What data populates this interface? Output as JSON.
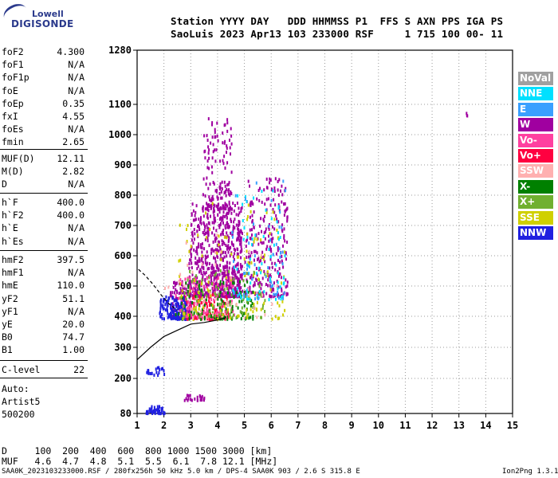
{
  "logo": {
    "line1": "Lowell",
    "line2": "DIGISONDE"
  },
  "header": {
    "line1": "Station YYYY DAY   DDD HHMMSS P1  FFS S AXN PPS IGA PS",
    "line2": "SaoLuis 2023 Apr13 103 233000 RSF     1 715 100 00- 11"
  },
  "params_group1": [
    {
      "name": "foF2",
      "value": "4.300"
    },
    {
      "name": "foF1",
      "value": "N/A"
    },
    {
      "name": "foF1p",
      "value": "N/A"
    },
    {
      "name": "foE",
      "value": "N/A"
    },
    {
      "name": "foEp",
      "value": "0.35"
    },
    {
      "name": "fxI",
      "value": "4.55"
    },
    {
      "name": "foEs",
      "value": "N/A"
    },
    {
      "name": "fmin",
      "value": "2.65"
    }
  ],
  "params_group2": [
    {
      "name": "MUF(D)",
      "value": "12.11"
    },
    {
      "name": "M(D)",
      "value": "2.82"
    },
    {
      "name": "D",
      "value": "N/A"
    }
  ],
  "params_group3": [
    {
      "name": "h`F",
      "value": "400.0"
    },
    {
      "name": "h`F2",
      "value": "400.0"
    },
    {
      "name": "h`E",
      "value": "N/A"
    },
    {
      "name": "h`Es",
      "value": "N/A"
    }
  ],
  "params_group4": [
    {
      "name": "hmF2",
      "value": "397.5"
    },
    {
      "name": "hmF1",
      "value": "N/A"
    },
    {
      "name": "hmE",
      "value": "110.0"
    },
    {
      "name": "yF2",
      "value": "51.1"
    },
    {
      "name": "yF1",
      "value": "N/A"
    },
    {
      "name": "yE",
      "value": "20.0"
    },
    {
      "name": "B0",
      "value": "74.7"
    },
    {
      "name": "B1",
      "value": "1.00"
    }
  ],
  "c_level": {
    "name": "C-level",
    "value": "22"
  },
  "auto": {
    "line1": "Auto:",
    "line2": "Artist5",
    "line3": "500200"
  },
  "legend": [
    {
      "label": "NoVal",
      "color": "#a0a0a0"
    },
    {
      "label": "NNE",
      "color": "#00e0ff"
    },
    {
      "label": "E",
      "color": "#3aa0ff"
    },
    {
      "label": "W",
      "color": "#a000a0"
    },
    {
      "label": "Vo-",
      "color": "#ff40a0"
    },
    {
      "label": "Vo+",
      "color": "#ff0040"
    },
    {
      "label": "SSW",
      "color": "#ffb0b0"
    },
    {
      "label": "X-",
      "color": "#008000"
    },
    {
      "label": "X+",
      "color": "#70b030"
    },
    {
      "label": "SSE",
      "color": "#d0d000"
    },
    {
      "label": "NNW",
      "color": "#2020e0"
    }
  ],
  "bottom_table": {
    "d_row": "D     100  200  400  600  800 1000 1500 3000 [km]",
    "muf_row": "MUF   4.6  4.7  4.8  5.1  5.5  6.1  7.8 12.1 [MHz]"
  },
  "footer": {
    "left": "SAA0K_2023103233000.RSF / 280fx256h 50 kHz 5.0 km / DPS-4 SAA0K 903 / 2.6 S 315.8 E",
    "right": "Ion2Png 1.3.17"
  },
  "chart_data": {
    "type": "scatter",
    "xlim": [
      1,
      15
    ],
    "ylim": [
      80,
      1280
    ],
    "x_ticks": [
      1,
      2,
      3,
      4,
      5,
      6,
      7,
      8,
      9,
      10,
      11,
      12,
      13,
      14,
      15
    ],
    "y_ticks": [
      80,
      200,
      300,
      400,
      500,
      600,
      700,
      800,
      900,
      1000,
      1100,
      1280
    ],
    "grid": true,
    "clusters": [
      {
        "name": "W",
        "color": "#a000a0",
        "x": [
          2.9,
          4.9
        ],
        "y": [
          470,
          780
        ],
        "count": 700
      },
      {
        "name": "W",
        "color": "#a000a0",
        "x": [
          3.4,
          4.5
        ],
        "y": [
          760,
          1060
        ],
        "count": 140
      },
      {
        "name": "W",
        "color": "#a000a0",
        "x": [
          5.0,
          6.6
        ],
        "y": [
          470,
          860
        ],
        "count": 260
      },
      {
        "name": "W",
        "color": "#a000a0",
        "x": [
          2.2,
          3.0
        ],
        "y": [
          400,
          520
        ],
        "count": 120
      },
      {
        "name": "NNW",
        "color": "#2020e0",
        "x": [
          1.8,
          2.8
        ],
        "y": [
          395,
          470
        ],
        "count": 160
      },
      {
        "name": "NNW",
        "color": "#2020e0",
        "x": [
          1.3,
          2.0
        ],
        "y": [
          85,
          110
        ],
        "count": 50
      },
      {
        "name": "NNW",
        "color": "#2020e0",
        "x": [
          1.3,
          2.0
        ],
        "y": [
          215,
          240
        ],
        "count": 20
      },
      {
        "name": "Vo+",
        "color": "#ff0040",
        "x": [
          2.7,
          4.4
        ],
        "y": [
          395,
          480
        ],
        "count": 110
      },
      {
        "name": "Vo-",
        "color": "#ff40a0",
        "x": [
          2.4,
          4.6
        ],
        "y": [
          400,
          540
        ],
        "count": 130
      },
      {
        "name": "X-",
        "color": "#008000",
        "x": [
          2.4,
          5.3
        ],
        "y": [
          395,
          520
        ],
        "count": 110
      },
      {
        "name": "X+",
        "color": "#70b030",
        "x": [
          2.5,
          5.8
        ],
        "y": [
          400,
          560
        ],
        "count": 90
      },
      {
        "name": "SSE",
        "color": "#d0d000",
        "x": [
          2.5,
          6.5
        ],
        "y": [
          395,
          780
        ],
        "count": 120
      },
      {
        "name": "NNE",
        "color": "#00e0ff",
        "x": [
          4.5,
          6.5
        ],
        "y": [
          460,
          820
        ],
        "count": 70
      },
      {
        "name": "E",
        "color": "#3aa0ff",
        "x": [
          4.5,
          6.5
        ],
        "y": [
          460,
          860
        ],
        "count": 50
      },
      {
        "name": "SSW",
        "color": "#ffb0b0",
        "x": [
          2.0,
          6.2
        ],
        "y": [
          400,
          700
        ],
        "count": 40
      },
      {
        "name": "W",
        "color": "#a000a0",
        "x": [
          2.7,
          3.5
        ],
        "y": [
          130,
          150
        ],
        "count": 22
      },
      {
        "name": "W",
        "color": "#a000a0",
        "x": [
          13.25,
          13.32
        ],
        "y": [
          1050,
          1108
        ],
        "count": 3
      }
    ],
    "profile_solid": {
      "x": [
        1.0,
        1.5,
        2.0,
        2.5,
        3.0,
        3.5,
        4.0,
        4.3,
        4.3
      ],
      "y": [
        260,
        300,
        335,
        355,
        375,
        380,
        388,
        395,
        400
      ]
    },
    "profile_dashed": {
      "x": [
        1.05,
        1.3,
        1.6,
        1.9,
        2.2,
        2.5
      ],
      "y": [
        555,
        535,
        505,
        470,
        440,
        420
      ]
    }
  }
}
